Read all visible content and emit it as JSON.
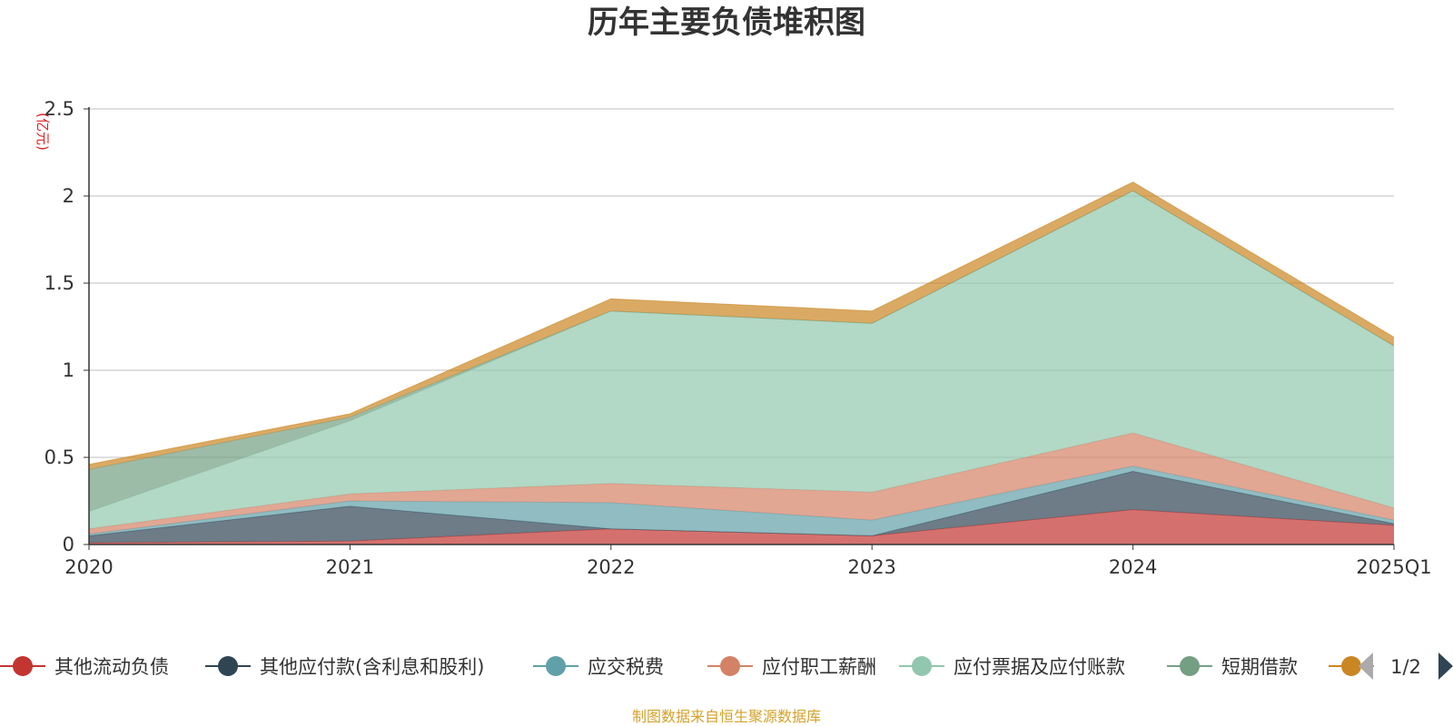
{
  "chart_data": {
    "type": "area",
    "stacked": true,
    "title": "历年主要负债堆积图",
    "unit_label": "(亿元)",
    "x": [
      "2020",
      "2021",
      "2022",
      "2023",
      "2024",
      "2025Q1"
    ],
    "ylim": [
      0,
      2.5
    ],
    "yticks": [
      0,
      0.5,
      1,
      1.5,
      2,
      2.5
    ],
    "ytick_labels": [
      "0",
      "0.5",
      "1",
      "1.5",
      "2",
      "2.5"
    ],
    "grid": true,
    "legend_position": "bottom",
    "series": [
      {
        "name": "其他流动负债",
        "color": "#c23531",
        "values": [
          0.01,
          0.02,
          0.09,
          0.05,
          0.2,
          0.11
        ]
      },
      {
        "name": "其他应付款(含利息和股利)",
        "color": "#2f4554",
        "values": [
          0.04,
          0.2,
          0.0,
          0.0,
          0.22,
          0.01
        ]
      },
      {
        "name": "应交税费",
        "color": "#61a0a8",
        "values": [
          0.01,
          0.03,
          0.15,
          0.09,
          0.03,
          0.02
        ]
      },
      {
        "name": "应付职工薪酬",
        "color": "#d48265",
        "values": [
          0.03,
          0.04,
          0.11,
          0.16,
          0.19,
          0.07
        ]
      },
      {
        "name": "应付票据及应付账款",
        "color": "#91c7ae",
        "values": [
          0.1,
          0.42,
          0.99,
          0.97,
          1.39,
          0.93
        ]
      },
      {
        "name": "短期借款",
        "color": "#749f83",
        "values": [
          0.24,
          0.02,
          0.0,
          0.0,
          0.0,
          0.0
        ]
      },
      {
        "name": "",
        "color": "#ca8622",
        "values": [
          0.03,
          0.02,
          0.07,
          0.07,
          0.05,
          0.05
        ]
      }
    ]
  },
  "legend": {
    "page_indicator": "1/2"
  },
  "footer": {
    "source": "制图数据来自恒生聚源数据库"
  },
  "colors": {
    "axis": "#333333",
    "grid": "#cccccc",
    "pager_disabled": "#aaaaaa",
    "pager_active": "#2f4554"
  }
}
